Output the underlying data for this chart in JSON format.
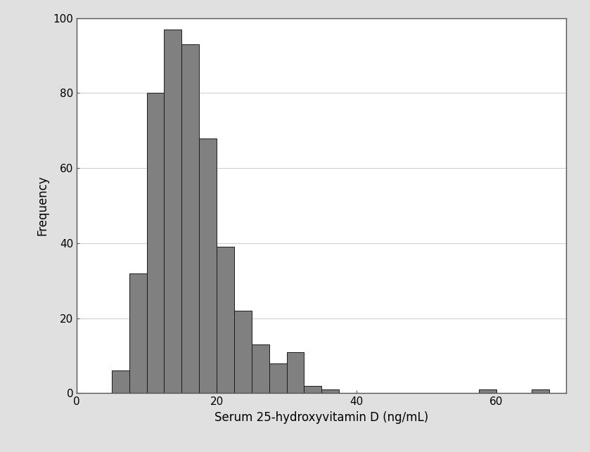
{
  "bin_edges": [
    5,
    7.5,
    10,
    12.5,
    15,
    17.5,
    20,
    22.5,
    25,
    27.5,
    30,
    32.5,
    35,
    37.5,
    40,
    42.5,
    45,
    47.5,
    50,
    52.5,
    55,
    57.5,
    60,
    62.5,
    65,
    67.5
  ],
  "frequencies": [
    6,
    32,
    80,
    97,
    93,
    68,
    39,
    22,
    13,
    8,
    11,
    2,
    1,
    0,
    0,
    0,
    0,
    0,
    0,
    0,
    0,
    1,
    0,
    0,
    1,
    0
  ],
  "bar_color": "#808080",
  "bar_edge_color": "#1a1a1a",
  "bar_linewidth": 0.7,
  "xlabel": "Serum 25-hydroxyvitamin D (ng/mL)",
  "ylabel": "Frequency",
  "xlim": [
    0,
    70
  ],
  "ylim": [
    0,
    100
  ],
  "xticks": [
    0,
    20,
    40,
    60
  ],
  "yticks": [
    0,
    20,
    40,
    60,
    80,
    100
  ],
  "background_color": "#e0e0e0",
  "plot_background_color": "#ffffff",
  "grid_color": "#d0d0d0",
  "grid_linewidth": 0.8,
  "xlabel_fontsize": 12,
  "ylabel_fontsize": 12,
  "tick_fontsize": 11,
  "bin_width": 2.5,
  "spine_color": "#555555",
  "spine_linewidth": 1.0
}
